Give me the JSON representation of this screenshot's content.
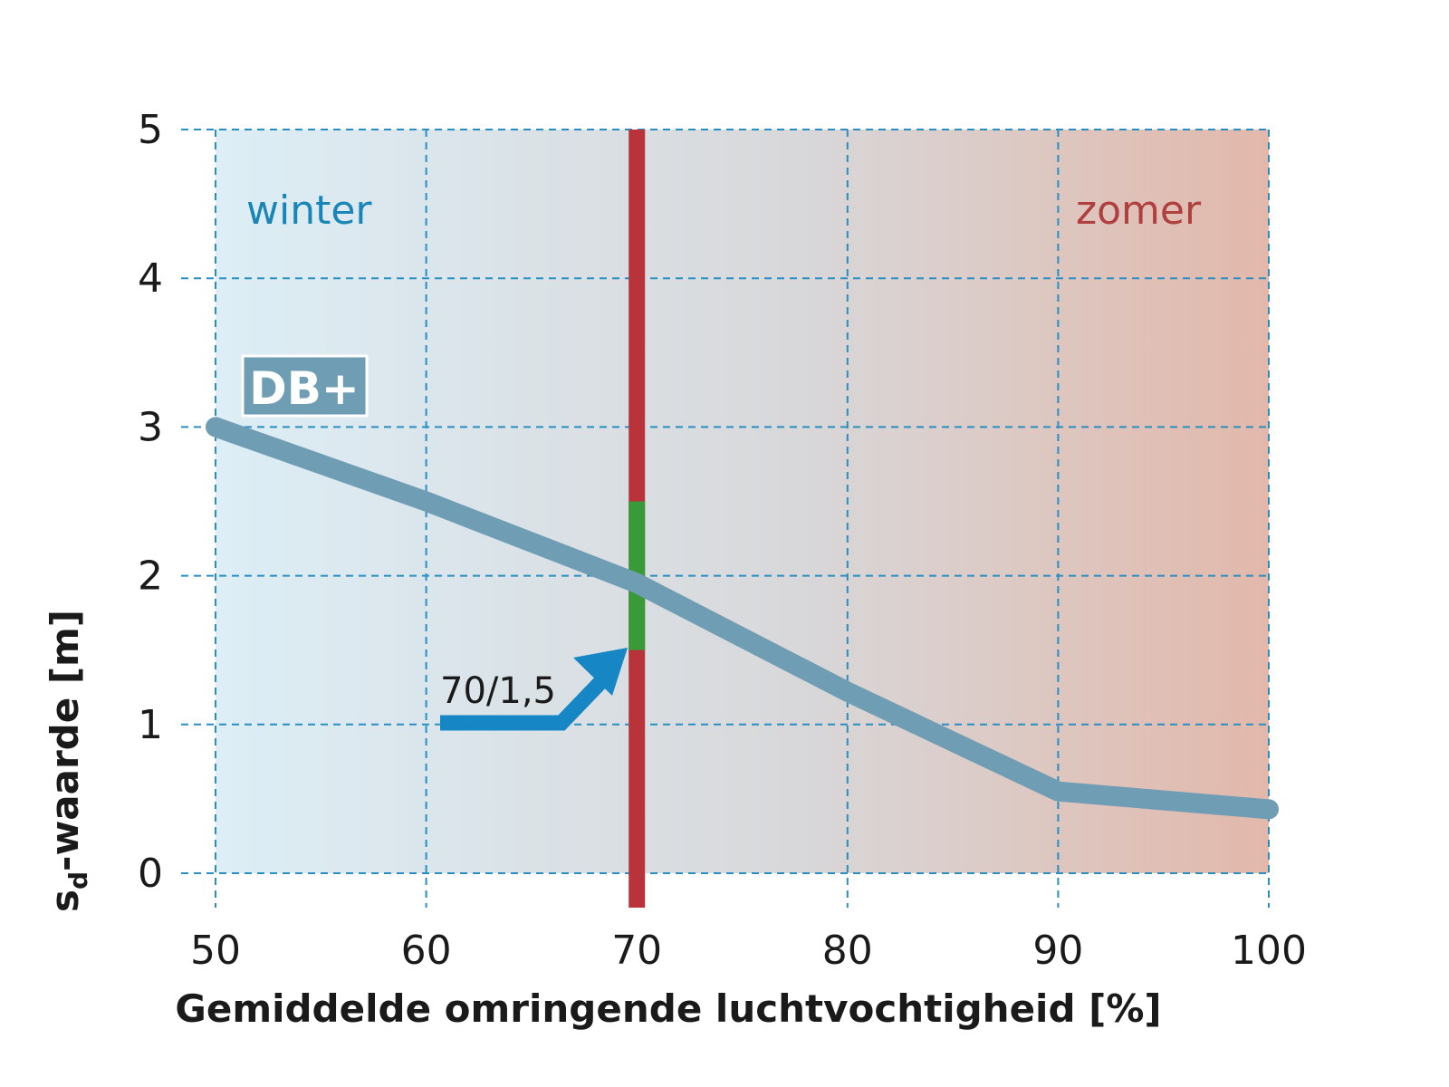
{
  "chart_data": {
    "type": "line",
    "xlabel": "Gemiddelde omringende luchtvochtigheid [%]",
    "ylabel_main": "s",
    "ylabel_sub": "d",
    "ylabel_rest": "-waarde [m]",
    "xlim": [
      50,
      100
    ],
    "ylim": [
      0,
      5
    ],
    "x_ticks": [
      "50",
      "60",
      "70",
      "80",
      "90",
      "100"
    ],
    "y_ticks": [
      "0",
      "1",
      "2",
      "3",
      "4",
      "5"
    ],
    "grid": true,
    "series": [
      {
        "name": "DB+",
        "color": "#6f9db4",
        "x": [
          50,
          60,
          70,
          80,
          90,
          100
        ],
        "y": [
          3.0,
          2.5,
          1.95,
          1.22,
          0.55,
          0.43
        ]
      }
    ],
    "annotations": {
      "winter": "winter",
      "zomer": "zomer",
      "marker_text": "70/1,5",
      "marker_x": 70,
      "green_range": [
        1.5,
        2.5
      ]
    },
    "colors": {
      "winter_bg": "#dcebf3",
      "zomer_bg": "#e2b8ab",
      "winter_text": "#1a86b8",
      "zomer_text": "#b0403f",
      "grid": "#2a8ec0",
      "marker_red": "#b8333a",
      "marker_green": "#3a9a3a",
      "arrow": "#1686c4",
      "db_box": "#6f9db4"
    }
  }
}
